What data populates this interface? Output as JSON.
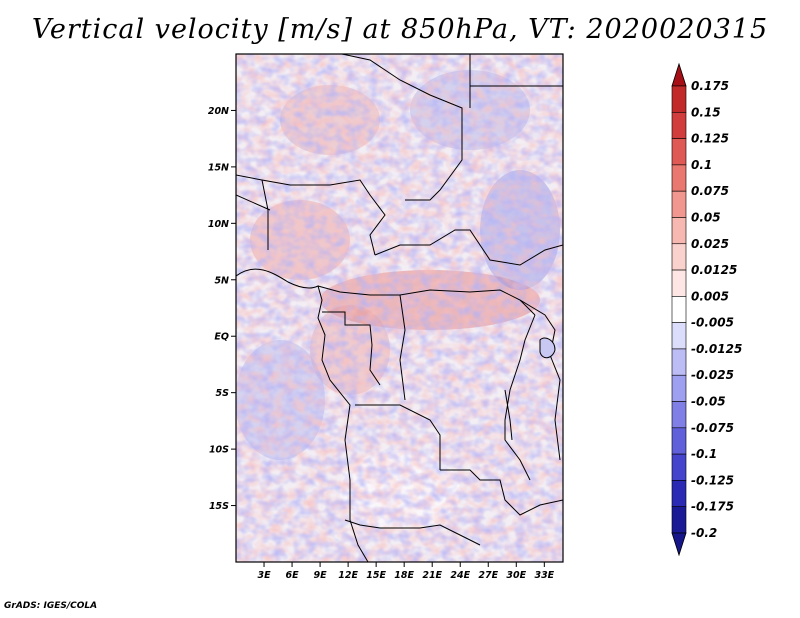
{
  "title": "Vertical velocity [m/s] at 850hPa, VT: 2020020315",
  "credit": "GrADS: IGES/COLA",
  "map": {
    "variable": "Vertical velocity",
    "units": "m/s",
    "level": "850hPa",
    "valid_time": "2020020315",
    "lon_range": [
      0,
      35
    ],
    "lat_range": [
      -20,
      25
    ],
    "y_ticks": [
      {
        "label": "20N",
        "lat": 20
      },
      {
        "label": "15N",
        "lat": 15
      },
      {
        "label": "10N",
        "lat": 10
      },
      {
        "label": "5N",
        "lat": 5
      },
      {
        "label": "EQ",
        "lat": 0
      },
      {
        "label": "5S",
        "lat": -5
      },
      {
        "label": "10S",
        "lat": -10
      },
      {
        "label": "15S",
        "lat": -15
      }
    ],
    "x_ticks": [
      {
        "label": "3E",
        "lon": 3
      },
      {
        "label": "6E",
        "lon": 6
      },
      {
        "label": "9E",
        "lon": 9
      },
      {
        "label": "12E",
        "lon": 12
      },
      {
        "label": "15E",
        "lon": 15
      },
      {
        "label": "18E",
        "lon": 18
      },
      {
        "label": "21E",
        "lon": 21
      },
      {
        "label": "24E",
        "lon": 24
      },
      {
        "label": "27E",
        "lon": 27
      },
      {
        "label": "30E",
        "lon": 30
      },
      {
        "label": "33E",
        "lon": 33
      }
    ]
  },
  "colorbar": {
    "levels": [
      {
        "label": "0.175",
        "color": "#b0171f"
      },
      {
        "label": "0.15",
        "color": "#c22a2a"
      },
      {
        "label": "0.125",
        "color": "#d13d3d"
      },
      {
        "label": "0.1",
        "color": "#df5a55"
      },
      {
        "label": "0.075",
        "color": "#e87870"
      },
      {
        "label": "0.05",
        "color": "#f0978f"
      },
      {
        "label": "0.025",
        "color": "#f6b8b1"
      },
      {
        "label": "0.0125",
        "color": "#fad2cd"
      },
      {
        "label": "0.005",
        "color": "#fde6e3"
      },
      {
        "label": "-0.005",
        "color": "#ffffff"
      },
      {
        "label": "-0.0125",
        "color": "#dcdcfb"
      },
      {
        "label": "-0.025",
        "color": "#bdbdf6"
      },
      {
        "label": "-0.05",
        "color": "#9f9ff0"
      },
      {
        "label": "-0.075",
        "color": "#7f7fe6"
      },
      {
        "label": "-0.1",
        "color": "#6060db"
      },
      {
        "label": "-0.125",
        "color": "#4444cc"
      },
      {
        "label": "-0.175",
        "color": "#2a2ab5"
      },
      {
        "label": "-0.2",
        "color": "#1a1a96"
      }
    ],
    "top_color": "#a50f15",
    "mid_color": "#ffffff",
    "bottom_color": "#16168a"
  }
}
